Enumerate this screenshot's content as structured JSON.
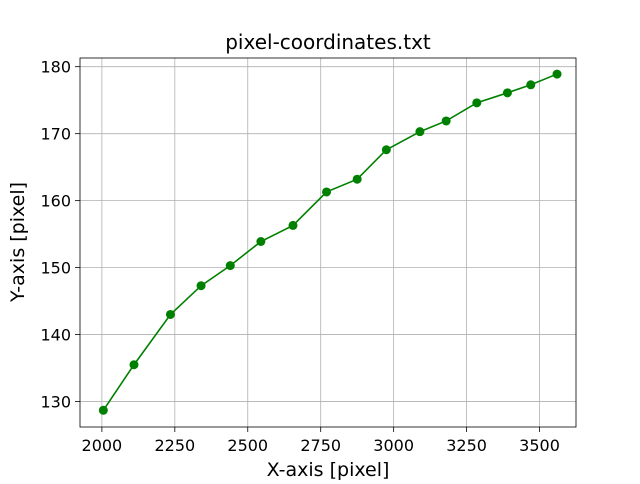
{
  "chart_data": {
    "type": "line",
    "title": "pixel-coordinates.txt",
    "xlabel": "X-axis [pixel]",
    "ylabel": "Y-axis [pixel]",
    "xlim": [
      1925,
      3625
    ],
    "ylim": [
      126.2,
      181.3
    ],
    "xticks": [
      2000,
      2250,
      2500,
      2750,
      3000,
      3250,
      3500
    ],
    "yticks": [
      130,
      140,
      150,
      160,
      170,
      180
    ],
    "grid": true,
    "color": "#008000",
    "marker": "circle",
    "x": [
      2005,
      2110,
      2235,
      2340,
      2440,
      2545,
      2655,
      2770,
      2875,
      2975,
      3090,
      3180,
      3285,
      3390,
      3470,
      3560
    ],
    "y": [
      128.7,
      135.5,
      143.0,
      147.3,
      150.3,
      153.9,
      156.3,
      161.3,
      163.2,
      167.6,
      170.3,
      171.9,
      174.6,
      176.1,
      177.3,
      178.9
    ]
  }
}
